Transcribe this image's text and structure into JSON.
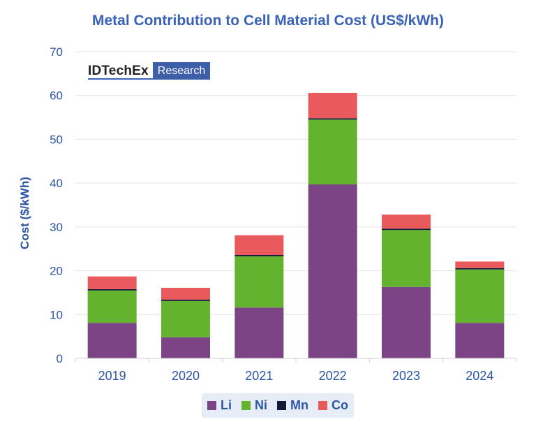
{
  "chart_data": {
    "type": "bar",
    "stacked": true,
    "title": "Metal Contribution to Cell Material Cost (US$/kWh)",
    "xlabel": "",
    "ylabel": "Cost ($/kWh)",
    "ylim": [
      0,
      70
    ],
    "yticks": [
      0,
      10,
      20,
      30,
      40,
      50,
      60,
      70
    ],
    "grid": true,
    "legend_position": "bottom",
    "categories": [
      "2019",
      "2020",
      "2021",
      "2022",
      "2023",
      "2024"
    ],
    "series": [
      {
        "name": "Li",
        "color": "#7b4585",
        "values": [
          8.1,
          4.8,
          11.6,
          39.7,
          16.3,
          8.1
        ]
      },
      {
        "name": "Ni",
        "color": "#63b32e",
        "values": [
          7.4,
          8.3,
          11.7,
          14.8,
          13.0,
          12.2
        ]
      },
      {
        "name": "Mn",
        "color": "#121a3a",
        "values": [
          0.3,
          0.3,
          0.3,
          0.3,
          0.3,
          0.3
        ]
      },
      {
        "name": "Co",
        "color": "#e85a5c",
        "values": [
          2.9,
          2.7,
          4.5,
          5.8,
          3.2,
          1.5
        ]
      }
    ]
  },
  "logo": {
    "brand": "IDTechEx",
    "sub": "Research"
  },
  "colors": {
    "title": "#3a63b6",
    "axis_text": "#2e56a6",
    "grid": "#e3e3e3"
  }
}
